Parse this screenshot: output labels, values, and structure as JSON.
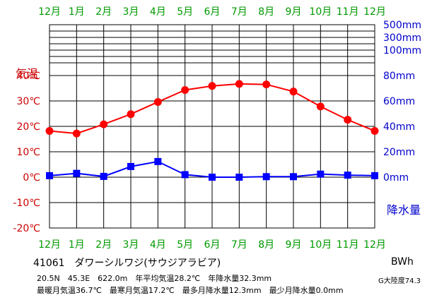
{
  "chart_data": {
    "type": "line",
    "months": [
      "12月",
      "1月",
      "2月",
      "3月",
      "4月",
      "5月",
      "6月",
      "7月",
      "8月",
      "9月",
      "10月",
      "11月",
      "12月"
    ],
    "temp_axis_title": "気温",
    "temp_ticks": [
      "-20℃",
      "-10℃",
      "0℃",
      "10℃",
      "20℃",
      "30℃",
      "40℃"
    ],
    "temp_tick_values": [
      -20,
      -10,
      0,
      10,
      20,
      30,
      40
    ],
    "temp_range": [
      -20,
      60
    ],
    "precip_axis_title": "降水量",
    "precip_ticks": [
      "0mm",
      "20mm",
      "40mm",
      "60mm",
      "80mm",
      "100mm",
      "300mm",
      "500mm"
    ],
    "precip_tick_values": [
      0,
      20,
      40,
      60,
      80,
      100,
      300,
      500
    ],
    "series": [
      {
        "color": "#ff0000",
        "axis": "temperature",
        "values": [
          18.2,
          17.2,
          20.8,
          24.8,
          29.6,
          34.3,
          35.9,
          36.7,
          36.5,
          33.7,
          27.8,
          22.6,
          18.2
        ]
      },
      {
        "color": "#0000ff",
        "axis": "precipitation",
        "values": [
          1.2,
          3.0,
          0.6,
          8.4,
          12.3,
          2.0,
          0.0,
          0.0,
          0.4,
          0.4,
          2.4,
          1.6,
          1.2
        ]
      }
    ],
    "grid": true,
    "colors": {
      "month_labels": "#009900",
      "temp_axis": "#cc0000",
      "precip_axis": "#0000cc"
    }
  },
  "info": {
    "station": "41061　ダワーシルワジ(サウジアラビア)",
    "line1": "20.5N　45.3E　622.0m　年平均気温28.2℃　年降水量32.3mm",
    "line2": "最暖月気温36.7℃　最寒月気温17.2℃　最多月降水量12.3mm　最少月降水量0.0mm",
    "koppen": "BWh",
    "aridity": "G大陸度74.3"
  }
}
